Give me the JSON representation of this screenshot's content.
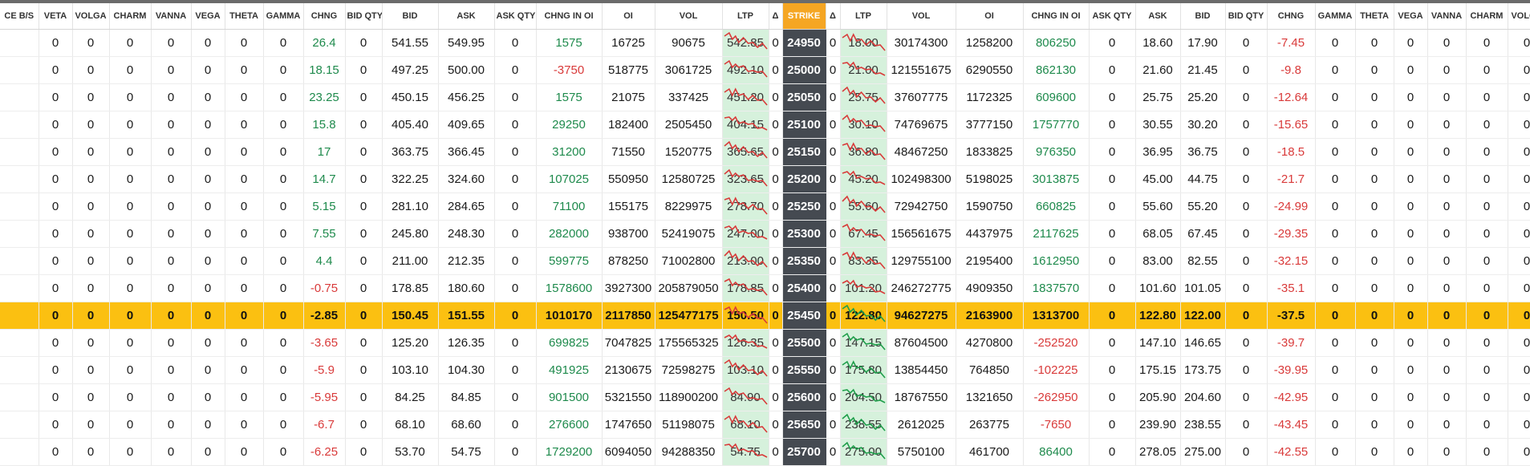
{
  "colors": {
    "strike_header": "#f5a623",
    "strike_cell": "#454a51",
    "ltp_bg": "#d6f1dc",
    "atm_row": "#fbc011",
    "positive": "#1e8a4c",
    "negative": "#d93a3a",
    "spark_up": "#1e9e4a",
    "spark_down": "#d93a3a"
  },
  "headers": [
    "CE B/S",
    "VETA",
    "VOLGA",
    "CHARM",
    "VANNA",
    "VEGA",
    "THETA",
    "GAMMA",
    "CHNG",
    "BID QTY",
    "BID",
    "ASK",
    "ASK QTY",
    "CHNG IN OI",
    "OI",
    "VOL",
    "LTP",
    "Δ",
    "STRIKE",
    "Δ",
    "LTP",
    "VOL",
    "OI",
    "CHNG IN OI",
    "ASK QTY",
    "ASK",
    "BID",
    "BID QTY",
    "CHNG",
    "GAMMA",
    "THETA",
    "VEGA",
    "VANNA",
    "CHARM",
    "VOLGA"
  ],
  "atm_index": 10,
  "rows": [
    {
      "strike": "24950",
      "ce": {
        "veta": "0",
        "volga": "0",
        "charm": "0",
        "vanna": "0",
        "vega": "0",
        "theta": "0",
        "gamma": "0",
        "chng": "26.4",
        "bid_qty": "0",
        "bid": "541.55",
        "ask": "549.95",
        "ask_qty": "0",
        "chng_oi": "1575",
        "oi": "16725",
        "vol": "90675",
        "ltp": "542.85",
        "delta": "0"
      },
      "pe": {
        "delta": "0",
        "ltp": "18.00",
        "vol": "30174300",
        "oi": "1258200",
        "chng_oi": "806250",
        "ask_qty": "0",
        "ask": "18.60",
        "bid": "17.90",
        "bid_qty": "0",
        "chng": "-7.45",
        "gamma": "0",
        "theta": "0",
        "vega": "0",
        "vanna": "0",
        "charm": "0",
        "volga": "0"
      }
    },
    {
      "strike": "25000",
      "ce": {
        "veta": "0",
        "volga": "0",
        "charm": "0",
        "vanna": "0",
        "vega": "0",
        "theta": "0",
        "gamma": "0",
        "chng": "18.15",
        "bid_qty": "0",
        "bid": "497.25",
        "ask": "500.00",
        "ask_qty": "0",
        "chng_oi": "-3750",
        "oi": "518775",
        "vol": "3061725",
        "ltp": "492.10",
        "delta": "0"
      },
      "pe": {
        "delta": "0",
        "ltp": "21.00",
        "vol": "121551675",
        "oi": "6290550",
        "chng_oi": "862130",
        "ask_qty": "0",
        "ask": "21.60",
        "bid": "21.45",
        "bid_qty": "0",
        "chng": "-9.8",
        "gamma": "0",
        "theta": "0",
        "vega": "0",
        "vanna": "0",
        "charm": "0",
        "volga": "0"
      }
    },
    {
      "strike": "25050",
      "ce": {
        "veta": "0",
        "volga": "0",
        "charm": "0",
        "vanna": "0",
        "vega": "0",
        "theta": "0",
        "gamma": "0",
        "chng": "23.25",
        "bid_qty": "0",
        "bid": "450.15",
        "ask": "456.25",
        "ask_qty": "0",
        "chng_oi": "1575",
        "oi": "21075",
        "vol": "337425",
        "ltp": "451.20",
        "delta": "0"
      },
      "pe": {
        "delta": "0",
        "ltp": "25.75",
        "vol": "37607775",
        "oi": "1172325",
        "chng_oi": "609600",
        "ask_qty": "0",
        "ask": "25.75",
        "bid": "25.20",
        "bid_qty": "0",
        "chng": "-12.64",
        "gamma": "0",
        "theta": "0",
        "vega": "0",
        "vanna": "0",
        "charm": "0",
        "volga": "0"
      }
    },
    {
      "strike": "25100",
      "ce": {
        "veta": "0",
        "volga": "0",
        "charm": "0",
        "vanna": "0",
        "vega": "0",
        "theta": "0",
        "gamma": "0",
        "chng": "15.8",
        "bid_qty": "0",
        "bid": "405.40",
        "ask": "409.65",
        "ask_qty": "0",
        "chng_oi": "29250",
        "oi": "182400",
        "vol": "2505450",
        "ltp": "404.15",
        "delta": "0"
      },
      "pe": {
        "delta": "0",
        "ltp": "30.10",
        "vol": "74769675",
        "oi": "3777150",
        "chng_oi": "1757770",
        "ask_qty": "0",
        "ask": "30.55",
        "bid": "30.20",
        "bid_qty": "0",
        "chng": "-15.65",
        "gamma": "0",
        "theta": "0",
        "vega": "0",
        "vanna": "0",
        "charm": "0",
        "volga": "0"
      }
    },
    {
      "strike": "25150",
      "ce": {
        "veta": "0",
        "volga": "0",
        "charm": "0",
        "vanna": "0",
        "vega": "0",
        "theta": "0",
        "gamma": "0",
        "chng": "17",
        "bid_qty": "0",
        "bid": "363.75",
        "ask": "366.45",
        "ask_qty": "0",
        "chng_oi": "31200",
        "oi": "71550",
        "vol": "1520775",
        "ltp": "365.65",
        "delta": "0"
      },
      "pe": {
        "delta": "0",
        "ltp": "36.80",
        "vol": "48467250",
        "oi": "1833825",
        "chng_oi": "976350",
        "ask_qty": "0",
        "ask": "36.95",
        "bid": "36.75",
        "bid_qty": "0",
        "chng": "-18.5",
        "gamma": "0",
        "theta": "0",
        "vega": "0",
        "vanna": "0",
        "charm": "0",
        "volga": "0"
      }
    },
    {
      "strike": "25200",
      "ce": {
        "veta": "0",
        "volga": "0",
        "charm": "0",
        "vanna": "0",
        "vega": "0",
        "theta": "0",
        "gamma": "0",
        "chng": "14.7",
        "bid_qty": "0",
        "bid": "322.25",
        "ask": "324.60",
        "ask_qty": "0",
        "chng_oi": "107025",
        "oi": "550950",
        "vol": "12580725",
        "ltp": "323.65",
        "delta": "0"
      },
      "pe": {
        "delta": "0",
        "ltp": "45.20",
        "vol": "102498300",
        "oi": "5198025",
        "chng_oi": "3013875",
        "ask_qty": "0",
        "ask": "45.00",
        "bid": "44.75",
        "bid_qty": "0",
        "chng": "-21.7",
        "gamma": "0",
        "theta": "0",
        "vega": "0",
        "vanna": "0",
        "charm": "0",
        "volga": "0"
      }
    },
    {
      "strike": "25250",
      "ce": {
        "veta": "0",
        "volga": "0",
        "charm": "0",
        "vanna": "0",
        "vega": "0",
        "theta": "0",
        "gamma": "0",
        "chng": "5.15",
        "bid_qty": "0",
        "bid": "281.10",
        "ask": "284.65",
        "ask_qty": "0",
        "chng_oi": "71100",
        "oi": "155175",
        "vol": "8229975",
        "ltp": "278.70",
        "delta": "0"
      },
      "pe": {
        "delta": "0",
        "ltp": "55.60",
        "vol": "72942750",
        "oi": "1590750",
        "chng_oi": "660825",
        "ask_qty": "0",
        "ask": "55.60",
        "bid": "55.20",
        "bid_qty": "0",
        "chng": "-24.99",
        "gamma": "0",
        "theta": "0",
        "vega": "0",
        "vanna": "0",
        "charm": "0",
        "volga": "0"
      }
    },
    {
      "strike": "25300",
      "ce": {
        "veta": "0",
        "volga": "0",
        "charm": "0",
        "vanna": "0",
        "vega": "0",
        "theta": "0",
        "gamma": "0",
        "chng": "7.55",
        "bid_qty": "0",
        "bid": "245.80",
        "ask": "248.30",
        "ask_qty": "0",
        "chng_oi": "282000",
        "oi": "938700",
        "vol": "52419075",
        "ltp": "247.00",
        "delta": "0"
      },
      "pe": {
        "delta": "0",
        "ltp": "67.45",
        "vol": "156561675",
        "oi": "4437975",
        "chng_oi": "2117625",
        "ask_qty": "0",
        "ask": "68.05",
        "bid": "67.45",
        "bid_qty": "0",
        "chng": "-29.35",
        "gamma": "0",
        "theta": "0",
        "vega": "0",
        "vanna": "0",
        "charm": "0",
        "volga": "0"
      }
    },
    {
      "strike": "25350",
      "ce": {
        "veta": "0",
        "volga": "0",
        "charm": "0",
        "vanna": "0",
        "vega": "0",
        "theta": "0",
        "gamma": "0",
        "chng": "4.4",
        "bid_qty": "0",
        "bid": "211.00",
        "ask": "212.35",
        "ask_qty": "0",
        "chng_oi": "599775",
        "oi": "878250",
        "vol": "71002800",
        "ltp": "213.00",
        "delta": "0"
      },
      "pe": {
        "delta": "0",
        "ltp": "83.35",
        "vol": "129755100",
        "oi": "2195400",
        "chng_oi": "1612950",
        "ask_qty": "0",
        "ask": "83.00",
        "bid": "82.55",
        "bid_qty": "0",
        "chng": "-32.15",
        "gamma": "0",
        "theta": "0",
        "vega": "0",
        "vanna": "0",
        "charm": "0",
        "volga": "0"
      }
    },
    {
      "strike": "25400",
      "ce": {
        "veta": "0",
        "volga": "0",
        "charm": "0",
        "vanna": "0",
        "vega": "0",
        "theta": "0",
        "gamma": "0",
        "chng": "-0.75",
        "bid_qty": "0",
        "bid": "178.85",
        "ask": "180.60",
        "ask_qty": "0",
        "chng_oi": "1578600",
        "oi": "3927300",
        "vol": "205879050",
        "ltp": "178.85",
        "delta": "0"
      },
      "pe": {
        "delta": "0",
        "ltp": "101.20",
        "vol": "246272775",
        "oi": "4909350",
        "chng_oi": "1837570",
        "ask_qty": "0",
        "ask": "101.60",
        "bid": "101.05",
        "bid_qty": "0",
        "chng": "-35.1",
        "gamma": "0",
        "theta": "0",
        "vega": "0",
        "vanna": "0",
        "charm": "0",
        "volga": "0"
      }
    },
    {
      "strike": "25450",
      "ce": {
        "veta": "0",
        "volga": "0",
        "charm": "0",
        "vanna": "0",
        "vega": "0",
        "theta": "0",
        "gamma": "0",
        "chng": "-2.85",
        "bid_qty": "0",
        "bid": "150.45",
        "ask": "151.55",
        "ask_qty": "0",
        "chng_oi": "1010170",
        "oi": "2117850",
        "vol": "125477175",
        "ltp": "150.50",
        "delta": "0"
      },
      "pe": {
        "delta": "0",
        "ltp": "122.80",
        "vol": "94627275",
        "oi": "2163900",
        "chng_oi": "1313700",
        "ask_qty": "0",
        "ask": "122.80",
        "bid": "122.00",
        "bid_qty": "0",
        "chng": "-37.5",
        "gamma": "0",
        "theta": "0",
        "vega": "0",
        "vanna": "0",
        "charm": "0",
        "volga": "0"
      }
    },
    {
      "strike": "25500",
      "ce": {
        "veta": "0",
        "volga": "0",
        "charm": "0",
        "vanna": "0",
        "vega": "0",
        "theta": "0",
        "gamma": "0",
        "chng": "-3.65",
        "bid_qty": "0",
        "bid": "125.20",
        "ask": "126.35",
        "ask_qty": "0",
        "chng_oi": "699825",
        "oi": "7047825",
        "vol": "175565325",
        "ltp": "126.35",
        "delta": "0"
      },
      "pe": {
        "delta": "0",
        "ltp": "147.15",
        "vol": "87604500",
        "oi": "4270800",
        "chng_oi": "-252520",
        "ask_qty": "0",
        "ask": "147.10",
        "bid": "146.65",
        "bid_qty": "0",
        "chng": "-39.7",
        "gamma": "0",
        "theta": "0",
        "vega": "0",
        "vanna": "0",
        "charm": "0",
        "volga": "0"
      }
    },
    {
      "strike": "25550",
      "ce": {
        "veta": "0",
        "volga": "0",
        "charm": "0",
        "vanna": "0",
        "vega": "0",
        "theta": "0",
        "gamma": "0",
        "chng": "-5.9",
        "bid_qty": "0",
        "bid": "103.10",
        "ask": "104.30",
        "ask_qty": "0",
        "chng_oi": "491925",
        "oi": "2130675",
        "vol": "72598275",
        "ltp": "103.10",
        "delta": "0"
      },
      "pe": {
        "delta": "0",
        "ltp": "175.80",
        "vol": "13854450",
        "oi": "764850",
        "chng_oi": "-102225",
        "ask_qty": "0",
        "ask": "175.15",
        "bid": "173.75",
        "bid_qty": "0",
        "chng": "-39.95",
        "gamma": "0",
        "theta": "0",
        "vega": "0",
        "vanna": "0",
        "charm": "0",
        "volga": "0"
      }
    },
    {
      "strike": "25600",
      "ce": {
        "veta": "0",
        "volga": "0",
        "charm": "0",
        "vanna": "0",
        "vega": "0",
        "theta": "0",
        "gamma": "0",
        "chng": "-5.95",
        "bid_qty": "0",
        "bid": "84.25",
        "ask": "84.85",
        "ask_qty": "0",
        "chng_oi": "901500",
        "oi": "5321550",
        "vol": "118900200",
        "ltp": "84.90",
        "delta": "0"
      },
      "pe": {
        "delta": "0",
        "ltp": "204.50",
        "vol": "18767550",
        "oi": "1321650",
        "chng_oi": "-262950",
        "ask_qty": "0",
        "ask": "205.90",
        "bid": "204.60",
        "bid_qty": "0",
        "chng": "-42.95",
        "gamma": "0",
        "theta": "0",
        "vega": "0",
        "vanna": "0",
        "charm": "0",
        "volga": "0"
      }
    },
    {
      "strike": "25650",
      "ce": {
        "veta": "0",
        "volga": "0",
        "charm": "0",
        "vanna": "0",
        "vega": "0",
        "theta": "0",
        "gamma": "0",
        "chng": "-6.7",
        "bid_qty": "0",
        "bid": "68.10",
        "ask": "68.60",
        "ask_qty": "0",
        "chng_oi": "276600",
        "oi": "1747650",
        "vol": "51198075",
        "ltp": "68.10",
        "delta": "0"
      },
      "pe": {
        "delta": "0",
        "ltp": "238.55",
        "vol": "2612025",
        "oi": "263775",
        "chng_oi": "-7650",
        "ask_qty": "0",
        "ask": "239.90",
        "bid": "238.55",
        "bid_qty": "0",
        "chng": "-43.45",
        "gamma": "0",
        "theta": "0",
        "vega": "0",
        "vanna": "0",
        "charm": "0",
        "volga": "0"
      }
    },
    {
      "strike": "25700",
      "ce": {
        "veta": "0",
        "volga": "0",
        "charm": "0",
        "vanna": "0",
        "vega": "0",
        "theta": "0",
        "gamma": "0",
        "chng": "-6.25",
        "bid_qty": "0",
        "bid": "53.70",
        "ask": "54.75",
        "ask_qty": "0",
        "chng_oi": "1729200",
        "oi": "6094050",
        "vol": "94288350",
        "ltp": "54.75",
        "delta": "0"
      },
      "pe": {
        "delta": "0",
        "ltp": "275.00",
        "vol": "5750100",
        "oi": "461700",
        "chng_oi": "86400",
        "ask_qty": "0",
        "ask": "278.05",
        "bid": "275.00",
        "bid_qty": "0",
        "chng": "-42.55",
        "gamma": "0",
        "theta": "0",
        "vega": "0",
        "vanna": "0",
        "charm": "0",
        "volga": "0"
      }
    }
  ]
}
